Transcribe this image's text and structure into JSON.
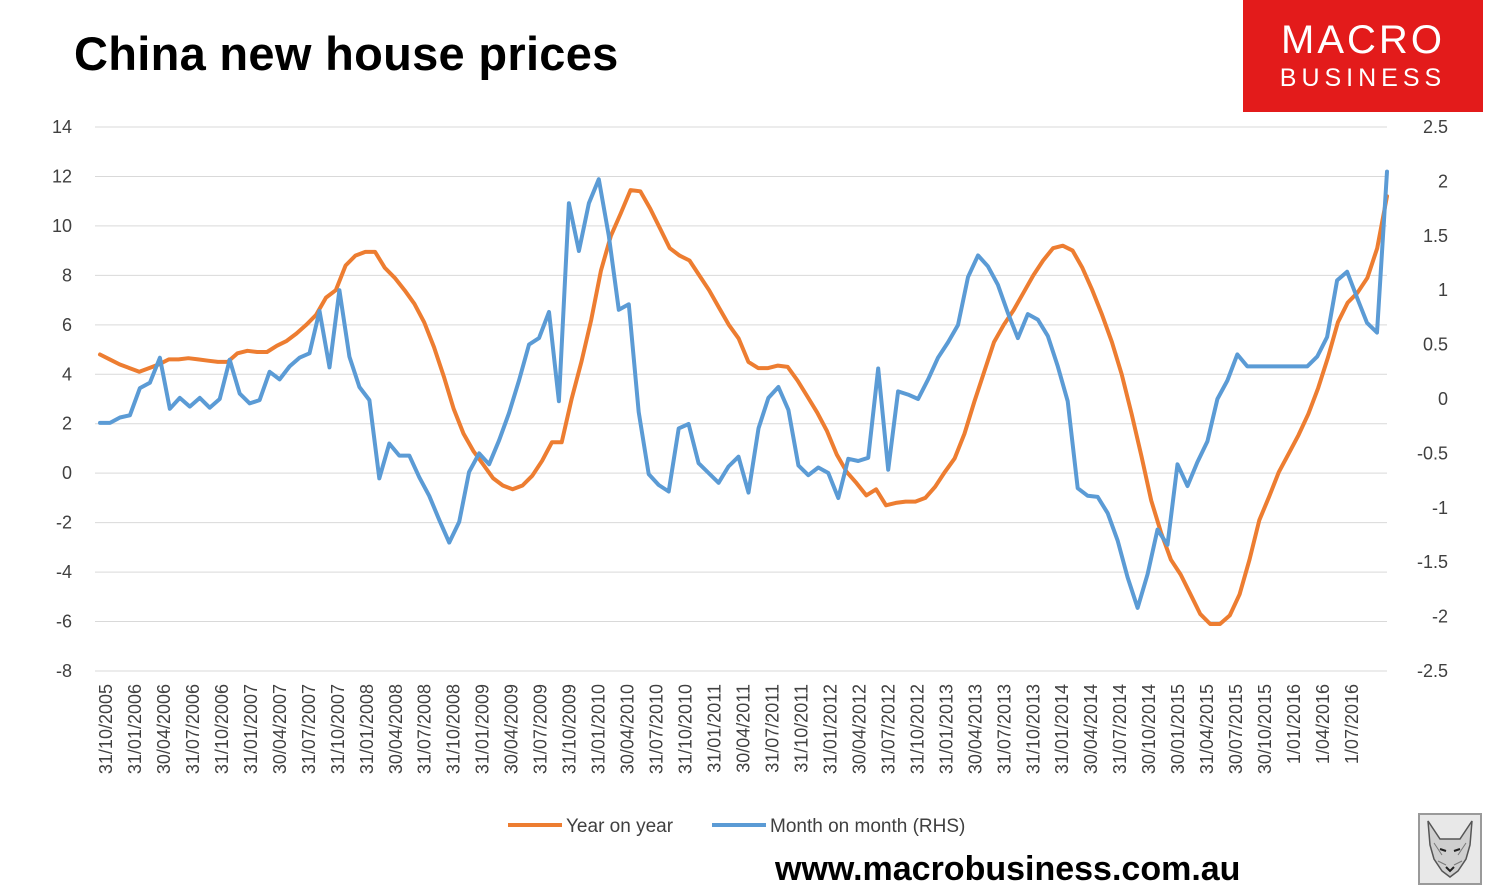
{
  "chart_data": {
    "type": "line",
    "title": "China new house prices",
    "left_axis": {
      "ticks": [
        "14",
        "12",
        "10",
        "8",
        "6",
        "4",
        "2",
        "0",
        "-2",
        "-4",
        "-6",
        "-8"
      ],
      "ylim": [
        -8,
        14
      ]
    },
    "right_axis": {
      "ticks": [
        "2.5",
        "2",
        "1.5",
        "1",
        "0.5",
        "0",
        "-0.5",
        "-1",
        "-1.5",
        "-2",
        "-2.5"
      ],
      "ylim": [
        -2.5,
        2.5
      ]
    },
    "x_tick_labels": [
      "31/10/2005",
      "31/01/2006",
      "30/04/2006",
      "31/07/2006",
      "31/10/2006",
      "31/01/2007",
      "30/04/2007",
      "31/07/2007",
      "31/10/2007",
      "31/01/2008",
      "30/04/2008",
      "31/07/2008",
      "31/10/2008",
      "31/01/2009",
      "30/04/2009",
      "31/07/2009",
      "31/10/2009",
      "31/01/2010",
      "30/04/2010",
      "31/07/2010",
      "31/10/2010",
      "31/01/2011",
      "30/04/2011",
      "31/07/2011",
      "31/10/2011",
      "31/01/2012",
      "30/04/2012",
      "31/07/2012",
      "31/10/2012",
      "31/01/2013",
      "30/04/2013",
      "31/07/2013",
      "31/10/2013",
      "31/01/2014",
      "30/04/2014",
      "31/07/2014",
      "30/10/2014",
      "30/01/2015",
      "31/04/2015",
      "30/07/2015",
      "30/10/2015",
      "1/01/2016",
      "1/04/2016",
      "1/07/2016"
    ],
    "series": [
      {
        "name": "Year on year",
        "color": "#ed7d31",
        "axis": "left",
        "values": [
          4.8,
          4.6,
          4.4,
          4.25,
          4.1,
          4.25,
          4.4,
          4.6,
          4.6,
          4.65,
          4.6,
          4.55,
          4.5,
          4.5,
          4.85,
          4.95,
          4.9,
          4.9,
          5.15,
          5.35,
          5.65,
          6.0,
          6.4,
          7.1,
          7.4,
          8.4,
          8.8,
          8.95,
          8.95,
          8.3,
          7.9,
          7.4,
          6.85,
          6.1,
          5.1,
          3.9,
          2.6,
          1.6,
          0.9,
          0.35,
          -0.2,
          -0.5,
          -0.65,
          -0.5,
          -0.1,
          0.5,
          1.25,
          1.25,
          3.0,
          4.5,
          6.2,
          8.2,
          9.6,
          10.5,
          11.45,
          11.4,
          10.7,
          9.9,
          9.1,
          8.8,
          8.6,
          8.0,
          7.4,
          6.7,
          6.0,
          5.45,
          4.5,
          4.25,
          4.25,
          4.35,
          4.3,
          3.75,
          3.1,
          2.45,
          1.7,
          0.75,
          0.05,
          -0.4,
          -0.9,
          -0.65,
          -1.3,
          -1.2,
          -1.15,
          -1.15,
          -1.0,
          -0.55,
          0.05,
          0.6,
          1.6,
          2.9,
          4.1,
          5.3,
          6.0,
          6.6,
          7.3,
          8.0,
          8.6,
          9.1,
          9.2,
          9.0,
          8.3,
          7.4,
          6.4,
          5.3,
          4.0,
          2.4,
          0.7,
          -1.1,
          -2.4,
          -3.5,
          -4.1,
          -4.9,
          -5.7,
          -6.1,
          -6.1,
          -5.75,
          -4.9,
          -3.5,
          -1.9,
          -0.95,
          0.05,
          0.8,
          1.55,
          2.4,
          3.45,
          4.7,
          6.1,
          6.9,
          7.3,
          7.9,
          9.1,
          11.2
        ]
      },
      {
        "name": "Month on month (RHS)",
        "color": "#5b9bd5",
        "axis": "right",
        "values": [
          -0.22,
          -0.22,
          -0.17,
          -0.15,
          0.1,
          0.15,
          0.38,
          -0.09,
          0.01,
          -0.07,
          0.01,
          -0.08,
          0.0,
          0.36,
          0.05,
          -0.04,
          -0.01,
          0.25,
          0.18,
          0.3,
          0.38,
          0.42,
          0.81,
          0.29,
          1.0,
          0.39,
          0.11,
          -0.01,
          -0.73,
          -0.41,
          -0.52,
          -0.52,
          -0.72,
          -0.89,
          -1.11,
          -1.32,
          -1.13,
          -0.67,
          -0.5,
          -0.6,
          -0.38,
          -0.13,
          0.17,
          0.5,
          0.56,
          0.8,
          -0.02,
          1.8,
          1.36,
          1.8,
          2.02,
          1.5,
          0.82,
          0.87,
          -0.12,
          -0.69,
          -0.79,
          -0.85,
          -0.27,
          -0.23,
          -0.59,
          -0.68,
          -0.77,
          -0.62,
          -0.53,
          -0.86,
          -0.27,
          0.01,
          0.11,
          -0.1,
          -0.61,
          -0.7,
          -0.63,
          -0.68,
          -0.91,
          -0.55,
          -0.57,
          -0.54,
          0.28,
          -0.65,
          0.07,
          0.04,
          0.0,
          0.18,
          0.38,
          0.52,
          0.68,
          1.12,
          1.32,
          1.22,
          1.05,
          0.79,
          0.56,
          0.78,
          0.73,
          0.58,
          0.3,
          -0.02,
          -0.82,
          -0.89,
          -0.9,
          -1.05,
          -1.3,
          -1.64,
          -1.92,
          -1.61,
          -1.2,
          -1.34,
          -0.6,
          -0.8,
          -0.58,
          -0.39,
          0.0,
          0.17,
          0.41,
          0.3,
          0.3,
          0.3,
          0.3,
          0.3,
          0.3,
          0.3,
          0.39,
          0.57,
          1.09,
          1.17,
          0.93,
          0.7,
          0.61,
          2.09
        ]
      }
    ],
    "legend_position": "bottom",
    "grid": "horizontal"
  },
  "branding": {
    "logo_line1": "MACRO",
    "logo_line2": "BUSINESS",
    "url": "www.macrobusiness.com.au",
    "logo_bg_color": "#e31b1b"
  }
}
